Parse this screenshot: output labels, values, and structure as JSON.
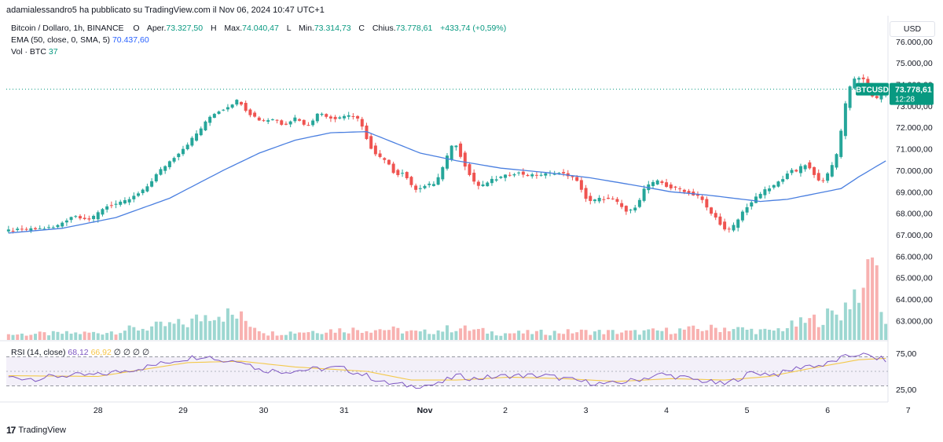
{
  "header": {
    "published_by": "adamialessandro5 ha pubblicato su TradingView.com il Nov 06, 2024 10:47 UTC+1"
  },
  "legend": {
    "symbol": "Bitcoin / Dollaro, 1h, BINANCE",
    "o_label": "O",
    "o_word": "Aper.",
    "open": "73.327,50",
    "h_label": "H",
    "h_word": "Max.",
    "high": "74.040,47",
    "l_label": "L",
    "l_word": "Min.",
    "low": "73.314,73",
    "c_label": "C",
    "c_word": "Chius.",
    "close": "73.778,61",
    "change": "+433,74 (+0,59%)",
    "ema_label": "EMA (50, close, 0, SMA, 5)",
    "ema_value": "70.437,60",
    "vol_label": "Vol · BTC",
    "vol_value": "37"
  },
  "rsi_legend": {
    "label": "RSI (14, close)",
    "rsi_value": "68,12",
    "ma_value": "66,92",
    "zeros": "∅ ∅ ∅ ∅"
  },
  "currency_button": "USD",
  "price_tag": {
    "symbol": "BTCUSD",
    "price": "73.778,61",
    "countdown": "12:28"
  },
  "branding": "TradingView",
  "colors": {
    "up": "#26a69a",
    "down": "#ef5350",
    "ema": "#4a7fe0",
    "rsi": "#7e57c2",
    "rsi_ma": "#f3c94c",
    "tag": "#089981"
  },
  "chart_data": {
    "type": "candlestick",
    "symbol": "BTCUSD",
    "interval": "1h",
    "x_ticks": [
      "28",
      "29",
      "30",
      "31",
      "Nov",
      "2",
      "3",
      "4",
      "5",
      "6",
      "7"
    ],
    "price_axis": {
      "ticks": [
        "63.000,00",
        "64.000,00",
        "65.000,00",
        "66.000,00",
        "67.000,00",
        "68.000,00",
        "69.000,00",
        "70.000,00",
        "71.000,00",
        "72.000,00",
        "73.000,00",
        "74.000,00",
        "75.000,00",
        "76.000,00"
      ],
      "range": [
        62100,
        77200
      ]
    },
    "rsi_axis": {
      "ticks": [
        "75,00",
        "25,00"
      ],
      "range": [
        10,
        90
      ],
      "band": [
        30,
        70
      ]
    },
    "price_path": [
      [
        0,
        67200
      ],
      [
        6,
        67250
      ],
      [
        11,
        67350
      ],
      [
        15,
        67900
      ],
      [
        19,
        67700
      ],
      [
        22,
        68300
      ],
      [
        26,
        68500
      ],
      [
        28,
        68700
      ],
      [
        31,
        69100
      ],
      [
        34,
        69900
      ],
      [
        37,
        70500
      ],
      [
        40,
        71100
      ],
      [
        43,
        71800
      ],
      [
        46,
        72600
      ],
      [
        49,
        72900
      ],
      [
        52,
        73300
      ],
      [
        54,
        72700
      ],
      [
        57,
        72300
      ],
      [
        60,
        72400
      ],
      [
        62,
        72100
      ],
      [
        65,
        72500
      ],
      [
        67,
        72000
      ],
      [
        70,
        72700
      ],
      [
        73,
        72400
      ],
      [
        75,
        72500
      ],
      [
        77,
        72600
      ],
      [
        79,
        72300
      ],
      [
        80,
        71800
      ],
      [
        82,
        70800
      ],
      [
        85,
        70400
      ],
      [
        87,
        69800
      ],
      [
        89,
        69900
      ],
      [
        91,
        69100
      ],
      [
        94,
        69300
      ],
      [
        96,
        69400
      ],
      [
        98,
        70300
      ],
      [
        100,
        71400
      ],
      [
        102,
        70500
      ],
      [
        104,
        69600
      ],
      [
        106,
        69200
      ],
      [
        108,
        69500
      ],
      [
        111,
        69700
      ],
      [
        114,
        69900
      ],
      [
        117,
        69750
      ],
      [
        120,
        69800
      ],
      [
        123,
        69900
      ],
      [
        126,
        69750
      ],
      [
        128,
        69400
      ],
      [
        130,
        68500
      ],
      [
        133,
        68700
      ],
      [
        136,
        68600
      ],
      [
        139,
        68000
      ],
      [
        141,
        68400
      ],
      [
        143,
        69300
      ],
      [
        146,
        69500
      ],
      [
        148,
        69200
      ],
      [
        151,
        69100
      ],
      [
        153,
        68900
      ],
      [
        155,
        68800
      ],
      [
        157,
        68100
      ],
      [
        159,
        67700
      ],
      [
        161,
        67100
      ],
      [
        163,
        67500
      ],
      [
        165,
        68200
      ],
      [
        167,
        68600
      ],
      [
        169,
        69000
      ],
      [
        171,
        69200
      ],
      [
        173,
        69500
      ],
      [
        175,
        70000
      ],
      [
        177,
        69900
      ],
      [
        178,
        70400
      ],
      [
        180,
        70000
      ],
      [
        182,
        69400
      ],
      [
        184,
        69900
      ],
      [
        186,
        71000
      ],
      [
        188,
        73700
      ],
      [
        190,
        74400
      ],
      [
        192,
        74200
      ],
      [
        194,
        73200
      ],
      [
        196,
        73700
      ]
    ],
    "ema_path": [
      [
        0,
        67080
      ],
      [
        12,
        67300
      ],
      [
        24,
        67800
      ],
      [
        36,
        68700
      ],
      [
        48,
        70000
      ],
      [
        56,
        70800
      ],
      [
        64,
        71400
      ],
      [
        72,
        71750
      ],
      [
        80,
        71800
      ],
      [
        86,
        71300
      ],
      [
        92,
        70800
      ],
      [
        100,
        70450
      ],
      [
        110,
        70100
      ],
      [
        120,
        69900
      ],
      [
        130,
        69650
      ],
      [
        140,
        69300
      ],
      [
        148,
        69000
      ],
      [
        156,
        68850
      ],
      [
        162,
        68700
      ],
      [
        168,
        68550
      ],
      [
        174,
        68650
      ],
      [
        180,
        68900
      ],
      [
        186,
        69150
      ],
      [
        190,
        69700
      ],
      [
        196,
        70440
      ]
    ],
    "volume_path": [
      [
        0,
        1
      ],
      [
        20,
        1.3
      ],
      [
        40,
        3
      ],
      [
        46,
        5.2
      ],
      [
        52,
        4
      ],
      [
        58,
        1.2
      ],
      [
        72,
        1.8
      ],
      [
        84,
        2
      ],
      [
        92,
        1.3
      ],
      [
        100,
        2.2
      ],
      [
        110,
        1.2
      ],
      [
        128,
        1.5
      ],
      [
        140,
        1.4
      ],
      [
        150,
        1.8
      ],
      [
        160,
        2.2
      ],
      [
        170,
        1.5
      ],
      [
        178,
        3.2
      ],
      [
        186,
        5
      ],
      [
        190,
        10
      ],
      [
        193,
        15
      ],
      [
        196,
        3
      ]
    ],
    "rsi_path": [
      [
        0,
        42
      ],
      [
        6,
        40
      ],
      [
        12,
        44
      ],
      [
        20,
        45
      ],
      [
        30,
        55
      ],
      [
        38,
        66
      ],
      [
        44,
        72
      ],
      [
        48,
        64
      ],
      [
        52,
        66
      ],
      [
        56,
        52
      ],
      [
        62,
        50
      ],
      [
        68,
        53
      ],
      [
        74,
        55
      ],
      [
        80,
        44
      ],
      [
        84,
        34
      ],
      [
        90,
        30
      ],
      [
        96,
        32
      ],
      [
        100,
        44
      ],
      [
        104,
        40
      ],
      [
        112,
        44
      ],
      [
        120,
        44
      ],
      [
        128,
        36
      ],
      [
        134,
        32
      ],
      [
        140,
        38
      ],
      [
        146,
        46
      ],
      [
        152,
        40
      ],
      [
        160,
        32
      ],
      [
        166,
        48
      ],
      [
        172,
        46
      ],
      [
        178,
        58
      ],
      [
        182,
        58
      ],
      [
        186,
        68
      ],
      [
        190,
        74
      ],
      [
        194,
        68
      ],
      [
        196,
        66
      ]
    ],
    "rsi_ma_path": [
      [
        0,
        44
      ],
      [
        20,
        43
      ],
      [
        40,
        62
      ],
      [
        52,
        64
      ],
      [
        64,
        56
      ],
      [
        80,
        50
      ],
      [
        90,
        38
      ],
      [
        100,
        38
      ],
      [
        112,
        42
      ],
      [
        124,
        40
      ],
      [
        136,
        36
      ],
      [
        148,
        40
      ],
      [
        160,
        38
      ],
      [
        170,
        43
      ],
      [
        180,
        55
      ],
      [
        190,
        66
      ],
      [
        196,
        68
      ]
    ]
  }
}
